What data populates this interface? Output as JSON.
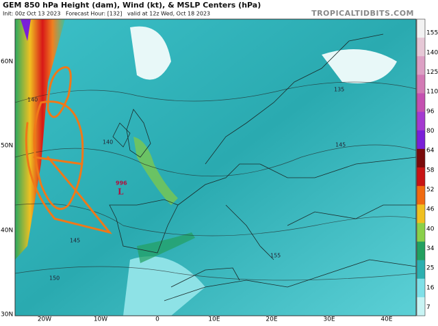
{
  "header": {
    "title": "GEM 850 hPa Height (dam), Wind (kt), & MSLP Centers (hPa)",
    "subtitle": "Init: 00z Oct 13 2023   Forecast Hour: [132]   valid at 12z Wed, Oct 18 2023",
    "source": "TROPICALTIDBITS.COM"
  },
  "colorbar": {
    "labels": [
      155,
      140,
      125,
      110,
      96,
      80,
      64,
      58,
      52,
      46,
      40,
      34,
      25,
      16,
      7
    ],
    "colors": [
      "#f2f2f2",
      "#e6c8d6",
      "#dca0c4",
      "#d27ab4",
      "#c450b0",
      "#a43ad0",
      "#7a1fd8",
      "#7a0a0a",
      "#c81414",
      "#f06a10",
      "#f0c020",
      "#8ad04a",
      "#22a060",
      "#2cb0b0",
      "#7fe0e8",
      "#c8f4f4"
    ]
  },
  "map": {
    "latitudes": [
      "60N",
      "50N",
      "40N",
      "30N"
    ],
    "longitudes": [
      "20W",
      "10W",
      "0",
      "10E",
      "20E",
      "30E",
      "40E"
    ],
    "low": {
      "pressure": "996",
      "symbol": "L"
    },
    "contours": [
      "140",
      "145",
      "150",
      "155",
      "135",
      "145",
      "140"
    ]
  }
}
